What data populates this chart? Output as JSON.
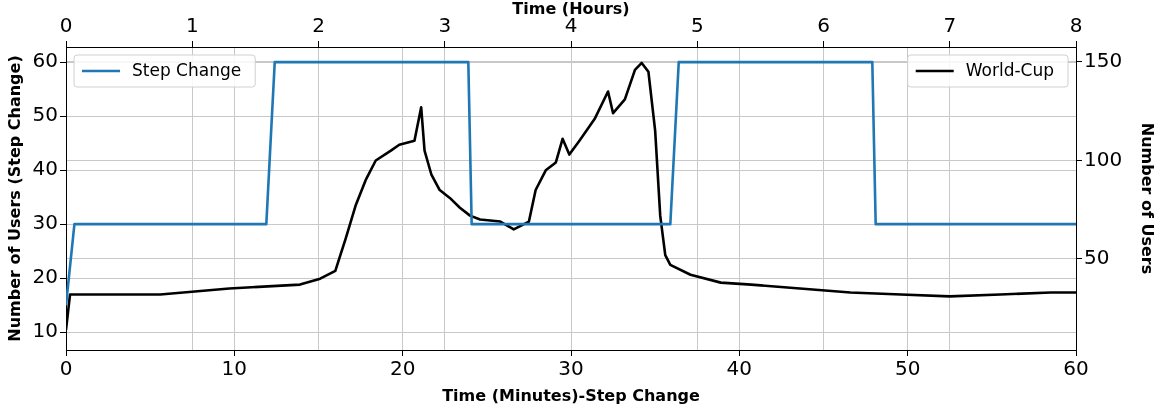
{
  "chart_data": {
    "type": "line",
    "xlabel": "Time (Minutes)-Step Change",
    "x2label": "Time (Hours)",
    "ylabel": "Number of Users (Step Change)",
    "y2label": "Number of Users",
    "xlim": [
      0,
      60
    ],
    "xticks": [
      0,
      10,
      20,
      30,
      40,
      50,
      60
    ],
    "x2lim": [
      0,
      8
    ],
    "x2ticks": [
      0,
      1,
      2,
      3,
      4,
      5,
      6,
      7,
      8
    ],
    "ylim": [
      6.7,
      62.8
    ],
    "yticks": [
      10,
      20,
      30,
      40,
      50,
      60
    ],
    "y2lim": [
      3.8,
      157.6
    ],
    "y2ticks": [
      50,
      100,
      150
    ],
    "grid": true,
    "legend": "top left",
    "line_style": "solid",
    "marker": "none",
    "series": [
      {
        "name": "Step Change",
        "color": "#1f77b4",
        "x": [
          0,
          0.5,
          11.9,
          12.4,
          23.9,
          24.1,
          35.9,
          36.4,
          47.9,
          48.1,
          60
        ],
        "values": [
          15,
          30,
          30,
          60,
          60,
          30,
          30,
          60,
          60,
          30,
          30
        ]
      },
      {
        "name": "World-Cup",
        "color": "#000000",
        "axis": "y2",
        "x": [
          0,
          0.24,
          2.0,
          5.6,
          9.7,
          13.9,
          15.1,
          16.0,
          16.6,
          17.2,
          17.8,
          18.4,
          19.3,
          19.8,
          20.7,
          21.1,
          21.3,
          21.7,
          22.2,
          22.8,
          23.4,
          24.0,
          24.6,
          25.8,
          26.6,
          27.5,
          27.9,
          28.5,
          29.1,
          29.5,
          29.9,
          30.5,
          31.4,
          32.2,
          32.5,
          33.2,
          33.8,
          34.2,
          34.6,
          35.0,
          35.3,
          35.6,
          35.9,
          37.1,
          38.9,
          40.7,
          43.6,
          46.6,
          49.6,
          52.5,
          55.5,
          58.5,
          60
        ],
        "values": [
          14,
          32,
          32,
          32,
          35,
          37,
          40,
          44,
          60,
          77,
          90,
          100,
          105,
          108,
          110,
          127,
          105,
          93,
          85,
          81,
          76,
          72,
          70,
          69,
          65,
          69,
          85,
          95,
          99,
          111,
          103,
          110,
          121,
          135,
          124,
          131,
          146,
          149.5,
          145,
          115,
          72,
          52,
          47,
          42,
          38,
          37,
          35,
          33,
          32,
          31,
          32,
          33,
          33
        ]
      }
    ]
  }
}
